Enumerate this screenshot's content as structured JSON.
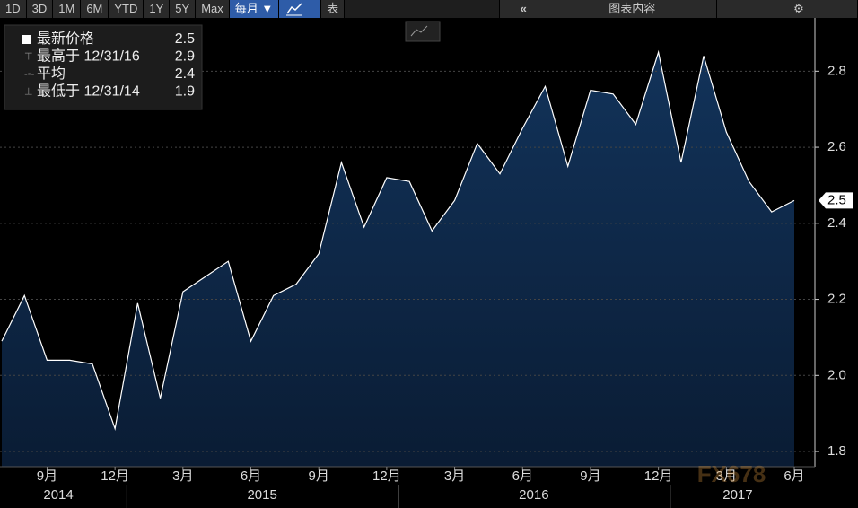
{
  "toolbar": {
    "ranges": [
      "1D",
      "3D",
      "1M",
      "6M",
      "YTD",
      "1Y",
      "5Y",
      "Max"
    ],
    "period": "每月 ▼",
    "table": "表",
    "collapse": "«",
    "contents": "图表内容",
    "settings": "⚙"
  },
  "legend": [
    {
      "name": "最新价格",
      "value": "2.5"
    },
    {
      "name": "最高于 12/31/16",
      "value": "2.9"
    },
    {
      "name": "平均",
      "value": "2.4"
    },
    {
      "name": "最低于 12/31/14",
      "value": "1.9"
    }
  ],
  "watermark": "FX678",
  "chart_data": {
    "type": "area",
    "categories": [
      null,
      null,
      "9月",
      null,
      null,
      "12月",
      null,
      null,
      "3月",
      null,
      null,
      "6月",
      null,
      null,
      "9月",
      null,
      null,
      "12月",
      null,
      null,
      "3月",
      null,
      null,
      "6月",
      null,
      null,
      "9月",
      null,
      null,
      "12月",
      null,
      null,
      "3月",
      null,
      null,
      "6月"
    ],
    "years": [
      "2014",
      "2015",
      "2016",
      "2017"
    ],
    "series": [
      {
        "name": "最新价格",
        "color": "#ffffff",
        "values": [
          2.09,
          2.21,
          2.04,
          2.04,
          2.03,
          1.86,
          2.19,
          1.94,
          2.22,
          2.26,
          2.3,
          2.09,
          2.21,
          2.24,
          2.32,
          2.56,
          2.39,
          2.52,
          2.51,
          2.38,
          2.46,
          2.61,
          2.53,
          2.65,
          2.76,
          2.55,
          2.75,
          2.74,
          2.66,
          2.85,
          2.56,
          2.84,
          2.64,
          2.51,
          2.43,
          2.46
        ]
      }
    ],
    "ylim": [
      1.76,
      2.94
    ],
    "yticks": [
      1.8,
      {
        "value": 2,
        "label": "2.0"
      },
      2.2,
      2.4,
      2.6,
      2.8
    ],
    "grid": true
  }
}
